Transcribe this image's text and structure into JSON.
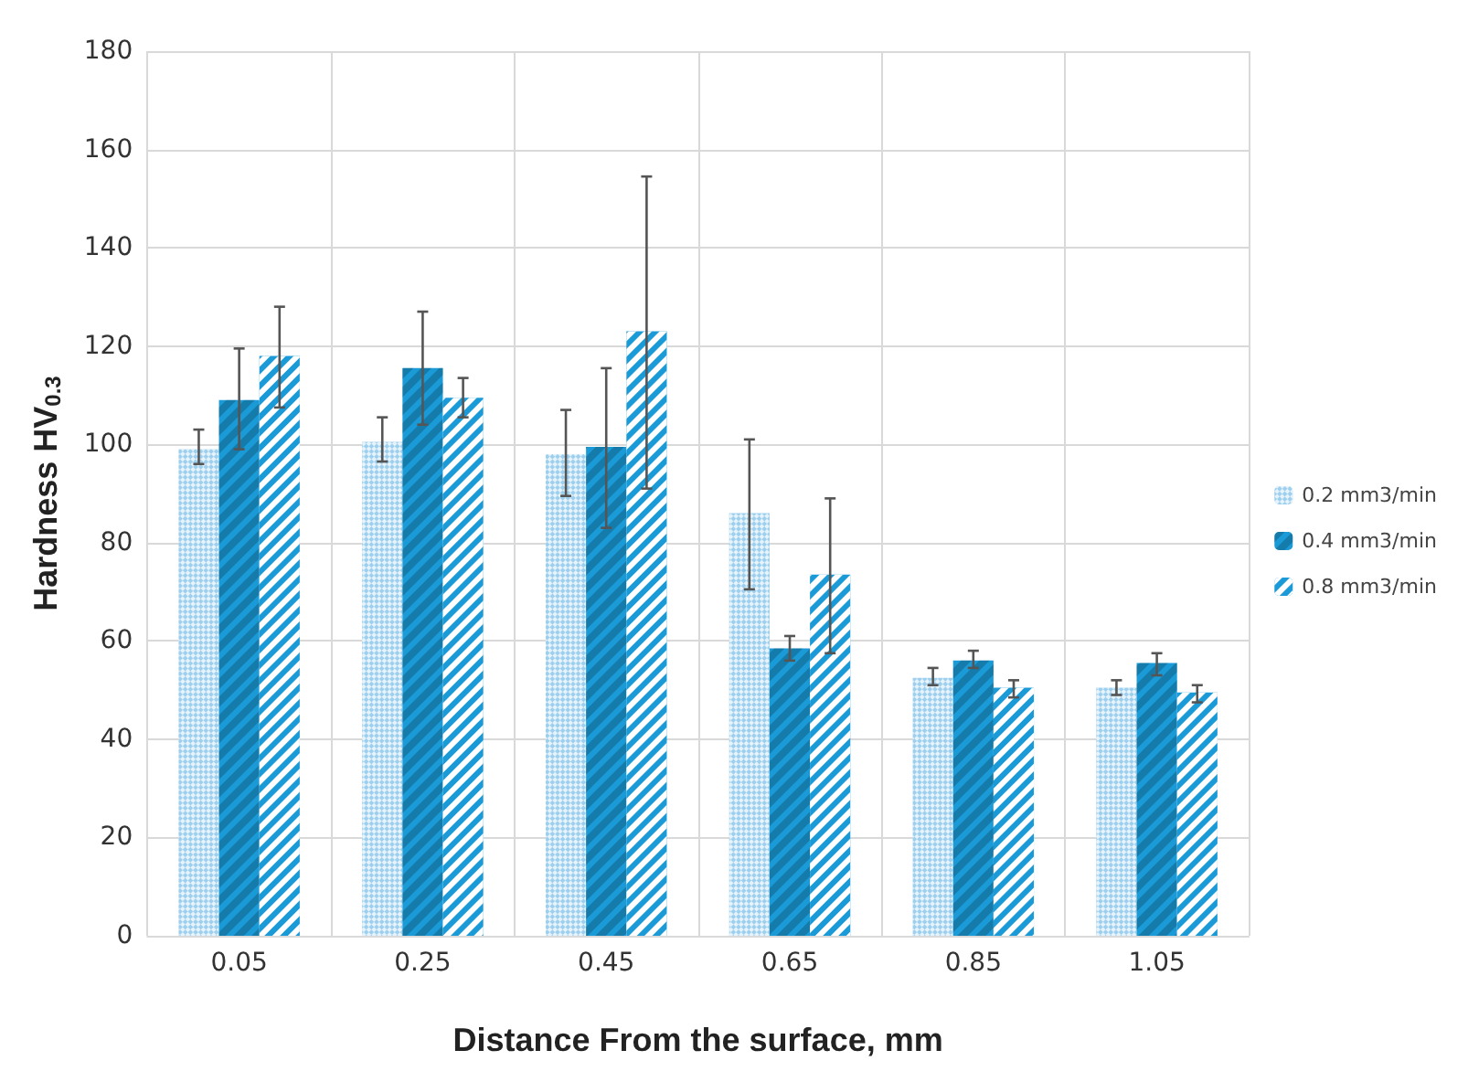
{
  "chart_data": {
    "type": "bar",
    "xlabel": "Distance From the surface, mm",
    "ylabel": "Hardness HV$_{0.3}$",
    "categories": [
      "0.05",
      "0.25",
      "0.45",
      "0.65",
      "0.85",
      "1.05"
    ],
    "series": [
      {
        "name": "0.2 mm3/min",
        "color": "#9dcfee",
        "values": [
          99,
          100.5,
          98,
          86,
          52.5,
          50.5
        ],
        "errors": [
          [
            96,
            103
          ],
          [
            96.5,
            105.5
          ],
          [
            89.5,
            107
          ],
          [
            70.5,
            101
          ],
          [
            51,
            54.5
          ],
          [
            49,
            52
          ]
        ]
      },
      {
        "name": "0.4 mm3/min",
        "color": "#1a9ad6",
        "values": [
          109,
          115.5,
          99.5,
          58.5,
          56,
          55.5
        ],
        "errors": [
          [
            99,
            119.5
          ],
          [
            104,
            127
          ],
          [
            83,
            115.5
          ],
          [
            56,
            61
          ],
          [
            54.5,
            58
          ],
          [
            53,
            57.5
          ]
        ]
      },
      {
        "name": "0.8 mm3/min",
        "color": "#1a9ad6",
        "values": [
          118,
          109.5,
          123,
          73.5,
          50.5,
          49.5
        ],
        "errors": [
          [
            107.5,
            128
          ],
          [
            105.5,
            113.5
          ],
          [
            91,
            154.5
          ],
          [
            57.5,
            89
          ],
          [
            48.5,
            52
          ],
          [
            47.5,
            51
          ]
        ]
      }
    ],
    "ylim": [
      0,
      180
    ],
    "yticks": [
      0,
      20,
      40,
      60,
      80,
      100,
      120,
      140,
      160,
      180
    ],
    "grid": true,
    "legend": "right"
  }
}
